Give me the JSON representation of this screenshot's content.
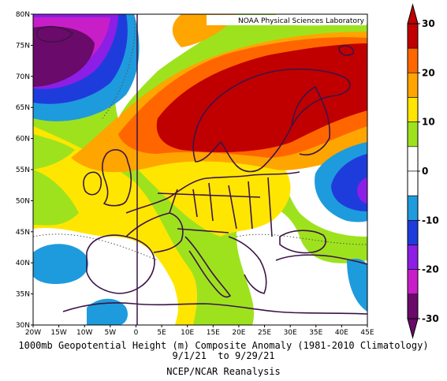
{
  "source_label": "NOAA Physical Sciences Laboratory",
  "lat_labels": [
    "80N",
    "75N",
    "70N",
    "65N",
    "60N",
    "55N",
    "50N",
    "45N",
    "40N",
    "35N",
    "30N"
  ],
  "lon_labels": [
    "20W",
    "15W",
    "10W",
    "5W",
    "0",
    "5E",
    "10E",
    "15E",
    "20E",
    "25E",
    "30E",
    "35E",
    "40E",
    "45E"
  ],
  "colorbar": {
    "ticks": [
      "30",
      "20",
      "10",
      "0",
      "-10",
      "-20",
      "-30"
    ],
    "colors": [
      "#c00000",
      "#ff6600",
      "#ffa500",
      "#ffe600",
      "#9ee21e",
      "#ffffff",
      "#ffffff",
      "#1e9bdc",
      "#1e3cdc",
      "#8c1ee6",
      "#c81ec8",
      "#6a0a6a"
    ]
  },
  "caption": {
    "line1": "1000mb Geopotential Height (m) Composite Anomaly (1981-2010 Climatology)",
    "line2": "9/1/21  to 9/29/21",
    "line3": "NCEP/NCAR Reanalysis"
  }
}
